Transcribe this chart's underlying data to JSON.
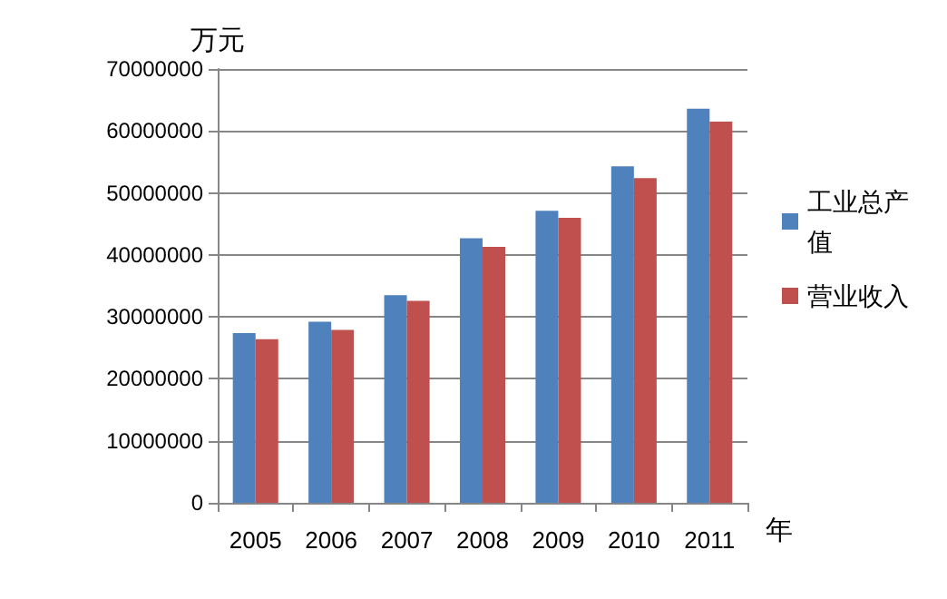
{
  "chart_data": {
    "type": "bar",
    "ylabel": "万元",
    "xlabel": "年",
    "categories": [
      "2005",
      "2006",
      "2007",
      "2008",
      "2009",
      "2010",
      "2011"
    ],
    "series": [
      {
        "name": "工业总产值",
        "color": "#4f81bd",
        "values": [
          27400000,
          29200000,
          33500000,
          42700000,
          47100000,
          54300000,
          63600000
        ]
      },
      {
        "name": "营业收入",
        "color": "#c0504d",
        "values": [
          26400000,
          27900000,
          32600000,
          41300000,
          46000000,
          52400000,
          61500000
        ]
      }
    ],
    "ylim": [
      0,
      70000000
    ],
    "yticks": [
      0,
      10000000,
      20000000,
      30000000,
      40000000,
      50000000,
      60000000,
      70000000
    ],
    "grid": "y",
    "legend": "right"
  }
}
